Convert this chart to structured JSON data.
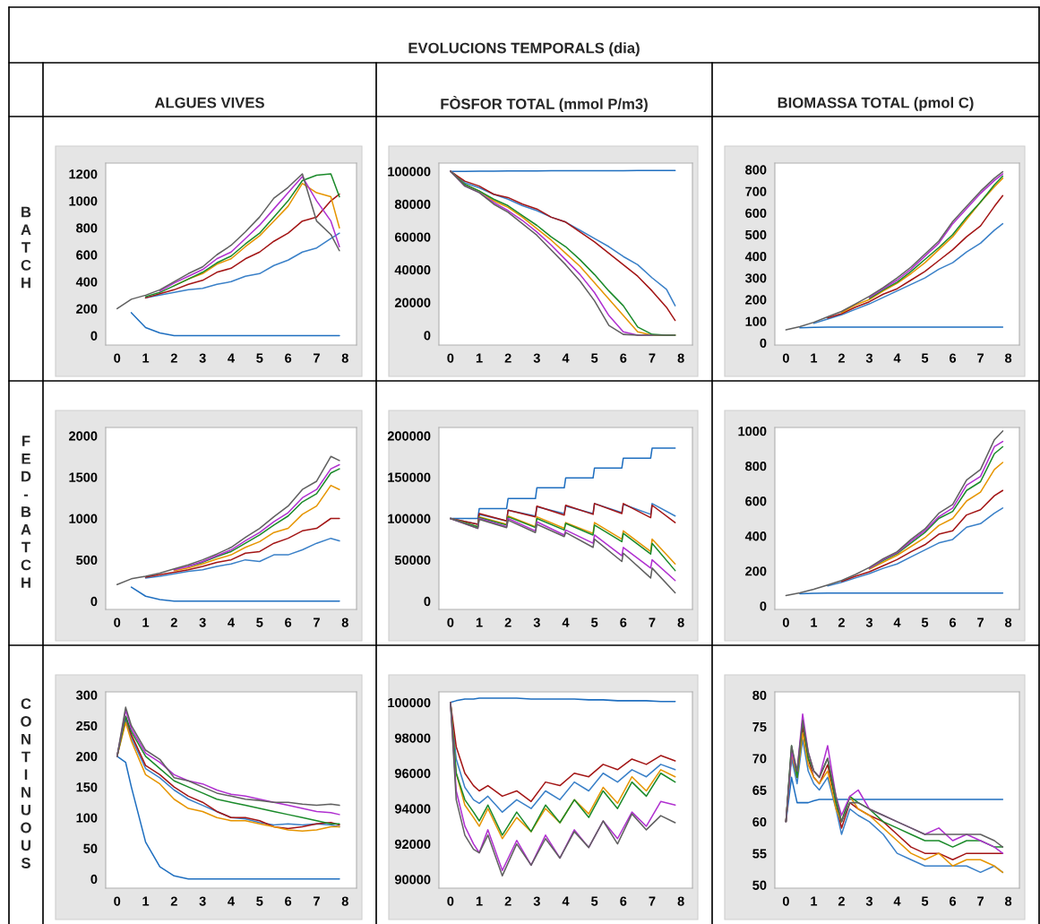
{
  "chart_data": [
    {
      "type": "line",
      "title": "ALGUES VIVES",
      "ylabel": "BATCH",
      "annotations": [
        "EVOLUCIONS TEMPORALS (dia)"
      ],
      "xlim": [
        -0.4,
        8.4
      ],
      "xticks": [
        0,
        1,
        2,
        3,
        4,
        5,
        6,
        7,
        8
      ],
      "ylim": [
        -70,
        1280
      ],
      "yticks": [
        0,
        200,
        400,
        600,
        800,
        1000,
        1200
      ],
      "grid": false,
      "x": [
        0,
        0.5,
        1,
        1.5,
        2,
        2.5,
        3,
        3.5,
        4,
        4.5,
        5,
        5.5,
        6,
        6.5,
        7,
        7.5,
        7.8
      ],
      "series": [
        {
          "color": "#1f6fc0",
          "values": [
            null,
            170,
            60,
            20,
            0,
            0,
            0,
            0,
            0,
            0,
            0,
            0,
            0,
            0,
            0,
            0,
            0
          ]
        },
        {
          "color": "#3a80c8",
          "values": [
            null,
            null,
            280,
            300,
            320,
            340,
            350,
            380,
            400,
            440,
            460,
            520,
            560,
            620,
            650,
            720,
            760
          ]
        },
        {
          "color": "#a31515",
          "values": [
            null,
            null,
            280,
            310,
            340,
            380,
            410,
            470,
            500,
            570,
            620,
            700,
            760,
            850,
            880,
            1000,
            1050
          ]
        },
        {
          "color": "#e69500",
          "values": [
            null,
            null,
            null,
            null,
            370,
            420,
            460,
            530,
            570,
            660,
            740,
            850,
            960,
            1130,
            1060,
            1030,
            800
          ]
        },
        {
          "color": "#1a8a2a",
          "values": [
            null,
            null,
            290,
            320,
            370,
            420,
            470,
            540,
            590,
            680,
            760,
            880,
            1000,
            1150,
            1190,
            1200,
            1030
          ]
        },
        {
          "color": "#b030d0",
          "values": [
            null,
            null,
            null,
            330,
            390,
            440,
            490,
            570,
            620,
            720,
            820,
            940,
            1060,
            1180,
            1000,
            850,
            660
          ]
        },
        {
          "color": "#606060",
          "values": [
            200,
            270,
            300,
            340,
            400,
            460,
            510,
            600,
            670,
            770,
            880,
            1020,
            1100,
            1200,
            850,
            750,
            630
          ]
        }
      ]
    },
    {
      "type": "line",
      "title": "FÒSFOR TOTAL (mmol P/m3)",
      "xlim": [
        -0.4,
        8.4
      ],
      "xticks": [
        0,
        1,
        2,
        3,
        4,
        5,
        6,
        7,
        8
      ],
      "ylim": [
        -6000,
        105000
      ],
      "yticks": [
        0,
        20000,
        40000,
        60000,
        80000,
        100000
      ],
      "grid": false,
      "x": [
        0,
        0.5,
        1,
        1.5,
        2,
        2.5,
        3,
        3.5,
        4,
        4.5,
        5,
        5.5,
        6,
        6.5,
        7,
        7.5,
        7.8
      ],
      "series": [
        {
          "color": "#1f6fc0",
          "values": [
            100000,
            100000,
            100100,
            100100,
            100200,
            100200,
            100200,
            100300,
            100300,
            100300,
            100400,
            100400,
            100400,
            100500,
            100500,
            100500,
            100500
          ]
        },
        {
          "color": "#3a80c8",
          "values": [
            100000,
            93000,
            90000,
            86000,
            83000,
            79000,
            76000,
            72000,
            69000,
            64000,
            59000,
            54000,
            48000,
            43000,
            35000,
            28000,
            18000
          ]
        },
        {
          "color": "#a31515",
          "values": [
            100000,
            94000,
            91000,
            86000,
            84000,
            80000,
            77000,
            72000,
            69000,
            63000,
            57000,
            50000,
            43000,
            36000,
            27000,
            17000,
            9000
          ]
        },
        {
          "color": "#e69500",
          "values": [
            100000,
            92000,
            88000,
            82000,
            78000,
            72000,
            65000,
            58000,
            50000,
            42000,
            32000,
            22000,
            12000,
            2000,
            0,
            0,
            0
          ]
        },
        {
          "color": "#1a8a2a",
          "values": [
            100000,
            92000,
            88000,
            83000,
            79000,
            73000,
            67000,
            60000,
            54000,
            46000,
            37000,
            27000,
            18000,
            5000,
            500,
            0,
            0
          ]
        },
        {
          "color": "#b030d0",
          "values": [
            100000,
            91000,
            87000,
            81000,
            76000,
            70000,
            63000,
            55000,
            46000,
            37000,
            26000,
            12000,
            2000,
            0,
            0,
            null,
            null
          ]
        },
        {
          "color": "#606060",
          "values": [
            100000,
            91000,
            87000,
            80000,
            75000,
            68000,
            61000,
            52000,
            43000,
            33000,
            21000,
            6000,
            500,
            0,
            0,
            0,
            0
          ]
        }
      ]
    },
    {
      "type": "line",
      "title": "BIOMASSA TOTAL (pmol C)",
      "xlim": [
        -0.4,
        8.4
      ],
      "xticks": [
        0,
        1,
        2,
        3,
        4,
        5,
        6,
        7,
        8
      ],
      "ylim": [
        -10,
        830
      ],
      "yticks": [
        0,
        100,
        200,
        300,
        400,
        500,
        600,
        700,
        800
      ],
      "grid": false,
      "x": [
        0,
        0.5,
        1,
        1.5,
        2,
        2.5,
        3,
        3.5,
        4,
        4.5,
        5,
        5.5,
        6,
        6.5,
        7,
        7.5,
        7.8
      ],
      "series": [
        {
          "color": "#1f6fc0",
          "values": [
            null,
            70,
            72,
            73,
            73,
            73,
            73,
            73,
            73,
            73,
            73,
            73,
            73,
            73,
            73,
            73,
            73
          ]
        },
        {
          "color": "#3a80c8",
          "values": [
            null,
            null,
            90,
            110,
            130,
            155,
            180,
            210,
            240,
            270,
            300,
            340,
            370,
            420,
            460,
            520,
            550
          ]
        },
        {
          "color": "#a31515",
          "values": [
            null,
            null,
            null,
            115,
            135,
            165,
            190,
            225,
            250,
            290,
            330,
            380,
            430,
            490,
            540,
            630,
            680
          ]
        },
        {
          "color": "#e69500",
          "values": [
            null,
            null,
            null,
            null,
            140,
            175,
            200,
            240,
            275,
            320,
            370,
            430,
            490,
            570,
            650,
            720,
            760
          ]
        },
        {
          "color": "#1a8a2a",
          "values": [
            null,
            null,
            null,
            null,
            null,
            null,
            205,
            245,
            280,
            330,
            385,
            440,
            500,
            580,
            650,
            730,
            770
          ]
        },
        {
          "color": "#b030d0",
          "values": [
            null,
            null,
            null,
            null,
            null,
            null,
            210,
            250,
            290,
            340,
            400,
            460,
            550,
            620,
            690,
            750,
            780
          ]
        },
        {
          "color": "#606060",
          "values": [
            60,
            75,
            95,
            120,
            145,
            180,
            215,
            255,
            300,
            350,
            410,
            470,
            560,
            630,
            700,
            760,
            790
          ]
        }
      ]
    },
    {
      "type": "line",
      "ylabel": "FED-BATCH",
      "xlim": [
        -0.4,
        8.4
      ],
      "xticks": [
        0,
        1,
        2,
        3,
        4,
        5,
        6,
        7,
        8
      ],
      "ylim": [
        -100,
        2100
      ],
      "yticks": [
        0,
        500,
        1000,
        1500,
        2000
      ],
      "grid": false,
      "x": [
        0,
        0.5,
        1,
        1.5,
        2,
        2.5,
        3,
        3.5,
        4,
        4.5,
        5,
        5.5,
        6,
        6.5,
        7,
        7.5,
        7.8
      ],
      "series": [
        {
          "color": "#1f6fc0",
          "values": [
            null,
            170,
            60,
            20,
            0,
            0,
            0,
            0,
            0,
            0,
            0,
            0,
            0,
            0,
            0,
            0,
            0
          ]
        },
        {
          "color": "#3a80c8",
          "values": [
            null,
            null,
            280,
            300,
            330,
            360,
            380,
            420,
            450,
            500,
            480,
            560,
            560,
            620,
            700,
            760,
            730
          ]
        },
        {
          "color": "#a31515",
          "values": [
            null,
            null,
            290,
            320,
            350,
            380,
            420,
            470,
            500,
            580,
            600,
            700,
            760,
            850,
            880,
            1000,
            1000
          ]
        },
        {
          "color": "#e69500",
          "values": [
            null,
            null,
            null,
            null,
            370,
            400,
            450,
            510,
            560,
            650,
            720,
            830,
            880,
            1050,
            1150,
            1400,
            1350
          ]
        },
        {
          "color": "#1a8a2a",
          "values": [
            null,
            null,
            null,
            null,
            null,
            420,
            470,
            540,
            600,
            700,
            800,
            920,
            1030,
            1200,
            1300,
            1550,
            1600
          ]
        },
        {
          "color": "#b030d0",
          "values": [
            null,
            null,
            null,
            null,
            380,
            420,
            480,
            550,
            620,
            730,
            830,
            960,
            1070,
            1250,
            1350,
            1600,
            1650
          ]
        },
        {
          "color": "#606060",
          "values": [
            200,
            270,
            300,
            340,
            390,
            440,
            500,
            570,
            650,
            770,
            880,
            1020,
            1150,
            1350,
            1450,
            1750,
            1700
          ]
        }
      ]
    },
    {
      "type": "line",
      "xlim": [
        -0.4,
        8.4
      ],
      "xticks": [
        0,
        1,
        2,
        3,
        4,
        5,
        6,
        7,
        8
      ],
      "ylim": [
        -10000,
        210000
      ],
      "yticks": [
        0,
        50000,
        100000,
        150000,
        200000
      ],
      "grid": false,
      "x": [
        0,
        0.95,
        1,
        1.95,
        2,
        2.95,
        3,
        3.95,
        4,
        4.95,
        5,
        5.95,
        6,
        6.95,
        7,
        7.8
      ],
      "series": [
        {
          "color": "#1f6fc0",
          "values": [
            100000,
            100000,
            112000,
            112000,
            124000,
            124000,
            137000,
            137000,
            149000,
            149000,
            161000,
            161000,
            173000,
            173000,
            185000,
            185000
          ]
        },
        {
          "color": "#3a80c8",
          "values": [
            100000,
            93000,
            105000,
            97000,
            110000,
            103000,
            114000,
            106000,
            115000,
            106000,
            118000,
            107000,
            117000,
            105000,
            118000,
            103000
          ]
        },
        {
          "color": "#a31515",
          "values": [
            100000,
            93000,
            106000,
            97000,
            110000,
            102000,
            115000,
            104000,
            116000,
            105000,
            118000,
            106000,
            118000,
            101000,
            116000,
            95000
          ]
        },
        {
          "color": "#e69500",
          "values": [
            100000,
            90000,
            102000,
            93000,
            103000,
            90000,
            102000,
            88000,
            95000,
            82000,
            95000,
            75000,
            85000,
            60000,
            75000,
            45000
          ]
        },
        {
          "color": "#1a8a2a",
          "values": [
            100000,
            90000,
            101000,
            92000,
            102000,
            89000,
            100000,
            86000,
            94000,
            80000,
            92000,
            72000,
            82000,
            57000,
            70000,
            37000
          ]
        },
        {
          "color": "#b030d0",
          "values": [
            100000,
            88000,
            100000,
            90000,
            100000,
            85000,
            96000,
            80000,
            86000,
            70000,
            80000,
            55000,
            65000,
            40000,
            50000,
            25000
          ]
        },
        {
          "color": "#606060",
          "values": [
            100000,
            88000,
            99000,
            89000,
            98000,
            83000,
            93000,
            78000,
            83000,
            65000,
            75000,
            48000,
            58000,
            28000,
            40000,
            10000
          ]
        }
      ]
    },
    {
      "type": "line",
      "xlim": [
        -0.4,
        8.4
      ],
      "xticks": [
        0,
        1,
        2,
        3,
        4,
        5,
        6,
        7,
        8
      ],
      "ylim": [
        -20,
        1020
      ],
      "yticks": [
        0,
        200,
        400,
        600,
        800,
        1000
      ],
      "grid": false,
      "x": [
        0,
        0.5,
        1,
        1.5,
        2,
        2.5,
        3,
        3.5,
        4,
        4.5,
        5,
        5.5,
        6,
        6.5,
        7,
        7.5,
        7.8
      ],
      "series": [
        {
          "color": "#1f6fc0",
          "values": [
            null,
            70,
            72,
            73,
            73,
            73,
            73,
            73,
            73,
            73,
            73,
            73,
            73,
            73,
            73,
            73,
            73
          ]
        },
        {
          "color": "#3a80c8",
          "values": [
            null,
            null,
            null,
            115,
            135,
            160,
            185,
            215,
            240,
            280,
            320,
            360,
            380,
            450,
            470,
            530,
            560
          ]
        },
        {
          "color": "#a31515",
          "values": [
            null,
            null,
            null,
            null,
            140,
            170,
            195,
            230,
            265,
            310,
            350,
            410,
            430,
            520,
            550,
            630,
            660
          ]
        },
        {
          "color": "#e69500",
          "values": [
            null,
            null,
            null,
            null,
            null,
            null,
            210,
            250,
            290,
            340,
            390,
            460,
            500,
            600,
            650,
            780,
            820
          ]
        },
        {
          "color": "#1a8a2a",
          "values": [
            null,
            null,
            null,
            null,
            null,
            null,
            215,
            260,
            300,
            360,
            420,
            500,
            540,
            660,
            710,
            870,
            910
          ]
        },
        {
          "color": "#b030d0",
          "values": [
            null,
            null,
            null,
            null,
            null,
            null,
            215,
            265,
            305,
            370,
            430,
            510,
            560,
            690,
            740,
            910,
            940
          ]
        },
        {
          "color": "#606060",
          "values": [
            60,
            75,
            95,
            120,
            145,
            180,
            220,
            270,
            310,
            380,
            440,
            530,
            580,
            720,
            780,
            950,
            1000
          ]
        }
      ]
    },
    {
      "type": "line",
      "ylabel": "CONTINUOUS",
      "xlim": [
        -0.4,
        8.4
      ],
      "xticks": [
        0,
        1,
        2,
        3,
        4,
        5,
        6,
        7,
        8
      ],
      "ylim": [
        -15,
        305
      ],
      "yticks": [
        0,
        50,
        100,
        150,
        200,
        250,
        300
      ],
      "grid": false,
      "x": [
        0,
        0.3,
        0.5,
        1,
        1.5,
        2,
        2.5,
        3,
        3.5,
        4,
        4.5,
        5,
        5.5,
        6,
        6.5,
        7,
        7.5,
        7.8
      ],
      "series": [
        {
          "color": "#1f6fc0",
          "values": [
            200,
            190,
            150,
            60,
            20,
            5,
            0,
            0,
            0,
            0,
            0,
            0,
            0,
            0,
            0,
            0,
            0,
            0
          ]
        },
        {
          "color": "#3a80c8",
          "values": [
            200,
            260,
            230,
            180,
            165,
            145,
            130,
            120,
            110,
            100,
            98,
            92,
            88,
            90,
            88,
            90,
            88,
            85
          ]
        },
        {
          "color": "#a31515",
          "values": [
            200,
            265,
            235,
            185,
            170,
            150,
            135,
            125,
            110,
            100,
            100,
            95,
            85,
            82,
            85,
            90,
            92,
            88
          ]
        },
        {
          "color": "#e69500",
          "values": [
            200,
            255,
            225,
            170,
            155,
            130,
            115,
            110,
            100,
            95,
            95,
            90,
            85,
            80,
            78,
            80,
            85,
            85
          ]
        },
        {
          "color": "#1a8a2a",
          "values": [
            200,
            265,
            240,
            200,
            180,
            160,
            150,
            140,
            130,
            125,
            120,
            115,
            110,
            105,
            100,
            95,
            90,
            90
          ]
        },
        {
          "color": "#b030d0",
          "values": [
            200,
            275,
            245,
            205,
            190,
            170,
            160,
            155,
            145,
            138,
            135,
            130,
            125,
            120,
            115,
            110,
            108,
            105
          ]
        },
        {
          "color": "#606060",
          "values": [
            200,
            280,
            250,
            210,
            195,
            165,
            160,
            150,
            140,
            135,
            130,
            128,
            125,
            125,
            122,
            120,
            122,
            120
          ]
        }
      ]
    },
    {
      "type": "line",
      "xlim": [
        -0.4,
        8.4
      ],
      "xticks": [
        0,
        1,
        2,
        3,
        4,
        5,
        6,
        7,
        8
      ],
      "ylim": [
        89500,
        100600
      ],
      "yticks": [
        90000,
        92000,
        94000,
        96000,
        98000,
        100000
      ],
      "grid": false,
      "x": [
        0,
        0.2,
        0.5,
        0.8,
        1,
        1.3,
        1.8,
        2.3,
        2.8,
        3.3,
        3.8,
        4.3,
        4.8,
        5.3,
        5.8,
        6.3,
        6.8,
        7.3,
        7.8
      ],
      "series": [
        {
          "color": "#1f6fc0",
          "values": [
            100000,
            100100,
            100200,
            100200,
            100250,
            100250,
            100250,
            100250,
            100200,
            100200,
            100200,
            100200,
            100150,
            100150,
            100100,
            100100,
            100100,
            100050,
            100050
          ]
        },
        {
          "color": "#3a80c8",
          "values": [
            100000,
            96800,
            95200,
            94500,
            94300,
            94700,
            93800,
            94500,
            94000,
            95000,
            94500,
            95500,
            95000,
            96000,
            95500,
            96200,
            95800,
            96500,
            96200
          ]
        },
        {
          "color": "#a31515",
          "values": [
            100000,
            97500,
            96000,
            95300,
            95000,
            95300,
            94700,
            95000,
            94400,
            95500,
            95300,
            96000,
            95800,
            96500,
            96200,
            96800,
            96500,
            97000,
            96700
          ]
        },
        {
          "color": "#e69500",
          "values": [
            100000,
            96000,
            94200,
            93500,
            93000,
            94000,
            92300,
            93500,
            92700,
            94000,
            93200,
            94500,
            93700,
            95200,
            94300,
            95800,
            95000,
            96200,
            95800
          ]
        },
        {
          "color": "#1a8a2a",
          "values": [
            100000,
            96000,
            94500,
            93800,
            93300,
            94200,
            92500,
            93800,
            92700,
            94200,
            93200,
            94500,
            93500,
            95000,
            94000,
            95500,
            94700,
            96000,
            95500
          ]
        },
        {
          "color": "#b030d0",
          "values": [
            100000,
            95000,
            93000,
            92000,
            91500,
            92800,
            90500,
            92200,
            90800,
            92500,
            91200,
            92800,
            91800,
            93300,
            92300,
            93800,
            93000,
            94400,
            94200
          ]
        },
        {
          "color": "#606060",
          "values": [
            100000,
            94500,
            92500,
            91700,
            91500,
            92500,
            90200,
            92000,
            90800,
            92300,
            91200,
            92700,
            91800,
            93300,
            92000,
            93700,
            92800,
            93600,
            93200
          ]
        }
      ]
    },
    {
      "type": "line",
      "xlim": [
        -0.4,
        8.4
      ],
      "xticks": [
        0,
        1,
        2,
        3,
        4,
        5,
        6,
        7,
        8
      ],
      "ylim": [
        49.5,
        80.5
      ],
      "yticks": [
        50,
        55,
        60,
        65,
        70,
        75,
        80
      ],
      "grid": false,
      "x": [
        0,
        0.2,
        0.4,
        0.6,
        0.8,
        1,
        1.2,
        1.5,
        1.8,
        2,
        2.3,
        2.6,
        3,
        3.5,
        4,
        4.5,
        5,
        5.5,
        6,
        6.5,
        7,
        7.5,
        7.8
      ],
      "series": [
        {
          "color": "#1f6fc0",
          "values": [
            60,
            67,
            63,
            63,
            63,
            63.3,
            63.5,
            63.5,
            63.5,
            63.5,
            63.5,
            63.5,
            63.5,
            63.5,
            63.5,
            63.5,
            63.5,
            63.5,
            63.5,
            63.5,
            63.5,
            63.5,
            63.5
          ]
        },
        {
          "color": "#3a80c8",
          "values": [
            60,
            70,
            66,
            73,
            68,
            66,
            65,
            67,
            62,
            58,
            62,
            61,
            60,
            58,
            55,
            54,
            53,
            53,
            53,
            53,
            52,
            53,
            52
          ]
        },
        {
          "color": "#a31515",
          "values": [
            60,
            71,
            67,
            75,
            70,
            67,
            66,
            69,
            63,
            59,
            63,
            62,
            61,
            60,
            58,
            56,
            55,
            55,
            54,
            55,
            55,
            55,
            55
          ]
        },
        {
          "color": "#e69500",
          "values": [
            60,
            71,
            67,
            74,
            69,
            67,
            66,
            68,
            62,
            60,
            64,
            62,
            61,
            59,
            57,
            55,
            54,
            55,
            53,
            54,
            54,
            53,
            52
          ]
        },
        {
          "color": "#1a8a2a",
          "values": [
            60,
            72,
            67,
            76,
            70,
            68,
            67,
            70,
            63,
            60,
            64,
            63,
            62,
            60,
            59,
            58,
            57,
            57,
            56,
            57,
            57,
            56,
            56
          ]
        },
        {
          "color": "#b030d0",
          "values": [
            60,
            71,
            68,
            77,
            71,
            68,
            67,
            72,
            64,
            61,
            64,
            65,
            62,
            61,
            60,
            59,
            58,
            59,
            57,
            58,
            57,
            56,
            55
          ]
        },
        {
          "color": "#606060",
          "values": [
            60,
            72,
            68,
            76,
            71,
            68,
            67,
            70,
            64,
            60,
            63,
            63,
            62,
            61,
            60,
            59,
            58,
            58,
            58,
            58,
            58,
            57,
            56
          ]
        }
      ]
    }
  ]
}
